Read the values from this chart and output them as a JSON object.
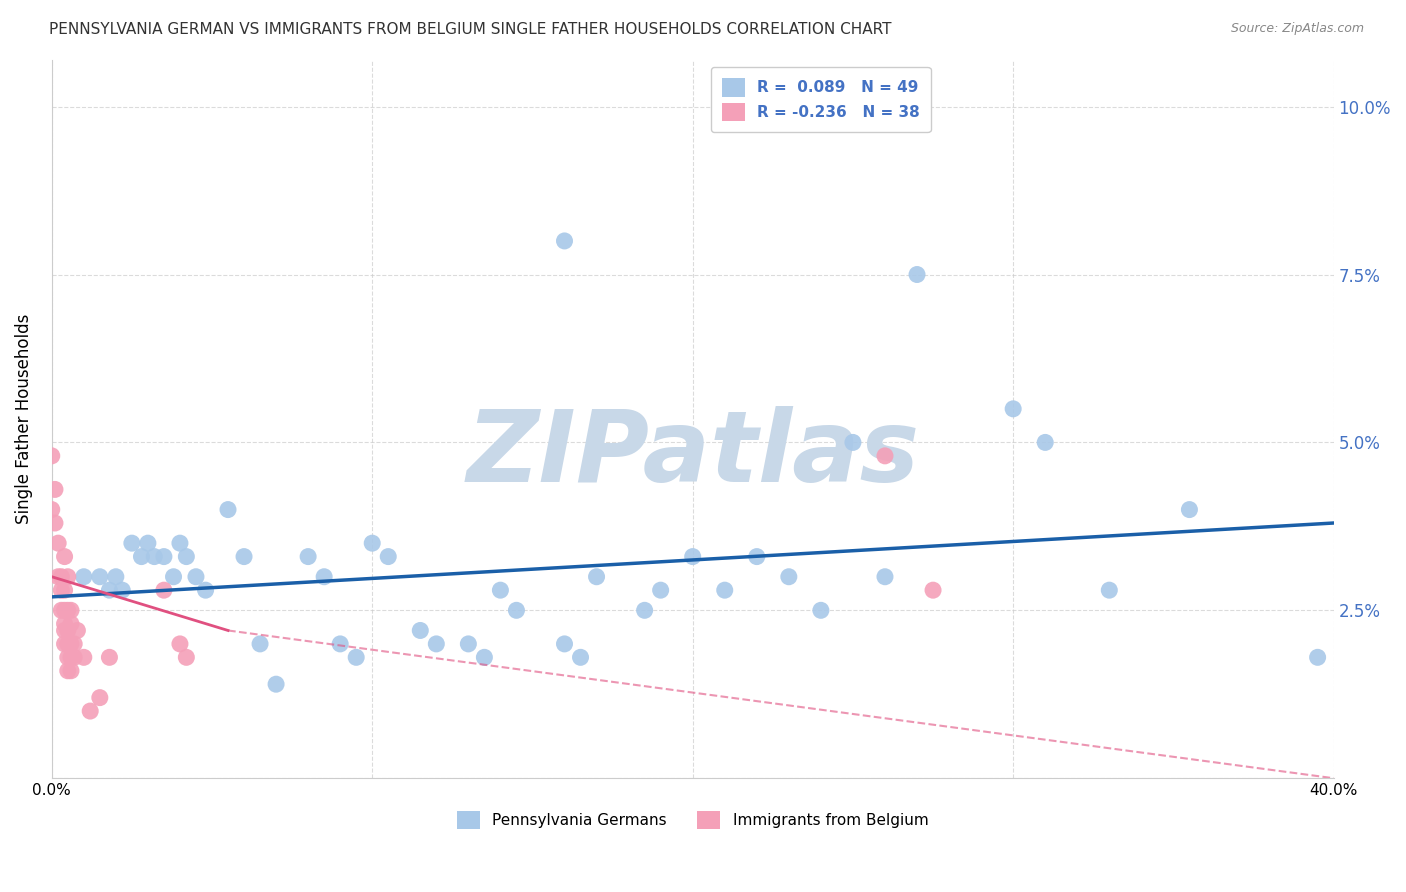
{
  "title": "PENNSYLVANIA GERMAN VS IMMIGRANTS FROM BELGIUM SINGLE FATHER HOUSEHOLDS CORRELATION CHART",
  "source": "Source: ZipAtlas.com",
  "ylabel": "Single Father Households",
  "xlim": [
    0.0,
    0.4
  ],
  "ylim": [
    0.0,
    0.107
  ],
  "yticks": [
    0.0,
    0.025,
    0.05,
    0.075,
    0.1
  ],
  "blue_color": "#a8c8e8",
  "pink_color": "#f4a0b8",
  "blue_line_color": "#1a5fa8",
  "pink_line_color": "#e05080",
  "right_axis_color": "#4472c4",
  "blue_scatter": [
    [
      0.01,
      0.03
    ],
    [
      0.015,
      0.03
    ],
    [
      0.018,
      0.028
    ],
    [
      0.02,
      0.03
    ],
    [
      0.022,
      0.028
    ],
    [
      0.025,
      0.035
    ],
    [
      0.028,
      0.033
    ],
    [
      0.03,
      0.035
    ],
    [
      0.032,
      0.033
    ],
    [
      0.035,
      0.033
    ],
    [
      0.038,
      0.03
    ],
    [
      0.04,
      0.035
    ],
    [
      0.042,
      0.033
    ],
    [
      0.045,
      0.03
    ],
    [
      0.048,
      0.028
    ],
    [
      0.055,
      0.04
    ],
    [
      0.06,
      0.033
    ],
    [
      0.065,
      0.02
    ],
    [
      0.07,
      0.014
    ],
    [
      0.08,
      0.033
    ],
    [
      0.085,
      0.03
    ],
    [
      0.09,
      0.02
    ],
    [
      0.095,
      0.018
    ],
    [
      0.1,
      0.035
    ],
    [
      0.105,
      0.033
    ],
    [
      0.115,
      0.022
    ],
    [
      0.12,
      0.02
    ],
    [
      0.13,
      0.02
    ],
    [
      0.135,
      0.018
    ],
    [
      0.14,
      0.028
    ],
    [
      0.145,
      0.025
    ],
    [
      0.16,
      0.02
    ],
    [
      0.165,
      0.018
    ],
    [
      0.17,
      0.03
    ],
    [
      0.185,
      0.025
    ],
    [
      0.19,
      0.028
    ],
    [
      0.2,
      0.033
    ],
    [
      0.21,
      0.028
    ],
    [
      0.22,
      0.033
    ],
    [
      0.23,
      0.03
    ],
    [
      0.24,
      0.025
    ],
    [
      0.25,
      0.05
    ],
    [
      0.26,
      0.03
    ],
    [
      0.16,
      0.08
    ],
    [
      0.27,
      0.075
    ],
    [
      0.3,
      0.055
    ],
    [
      0.31,
      0.05
    ],
    [
      0.33,
      0.028
    ],
    [
      0.355,
      0.04
    ],
    [
      0.395,
      0.018
    ]
  ],
  "pink_scatter": [
    [
      0.0,
      0.04
    ],
    [
      0.001,
      0.038
    ],
    [
      0.001,
      0.043
    ],
    [
      0.0,
      0.048
    ],
    [
      0.002,
      0.035
    ],
    [
      0.002,
      0.03
    ],
    [
      0.003,
      0.03
    ],
    [
      0.003,
      0.028
    ],
    [
      0.003,
      0.025
    ],
    [
      0.004,
      0.033
    ],
    [
      0.004,
      0.028
    ],
    [
      0.004,
      0.025
    ],
    [
      0.004,
      0.023
    ],
    [
      0.004,
      0.022
    ],
    [
      0.004,
      0.02
    ],
    [
      0.005,
      0.03
    ],
    [
      0.005,
      0.025
    ],
    [
      0.005,
      0.022
    ],
    [
      0.005,
      0.02
    ],
    [
      0.005,
      0.018
    ],
    [
      0.005,
      0.016
    ],
    [
      0.006,
      0.025
    ],
    [
      0.006,
      0.023
    ],
    [
      0.006,
      0.02
    ],
    [
      0.006,
      0.018
    ],
    [
      0.006,
      0.016
    ],
    [
      0.007,
      0.02
    ],
    [
      0.007,
      0.018
    ],
    [
      0.008,
      0.022
    ],
    [
      0.01,
      0.018
    ],
    [
      0.012,
      0.01
    ],
    [
      0.015,
      0.012
    ],
    [
      0.018,
      0.018
    ],
    [
      0.035,
      0.028
    ],
    [
      0.04,
      0.02
    ],
    [
      0.042,
      0.018
    ],
    [
      0.26,
      0.048
    ],
    [
      0.275,
      0.028
    ]
  ],
  "blue_regression": {
    "x_start": 0.0,
    "x_end": 0.4,
    "y_start": 0.027,
    "y_end": 0.038
  },
  "pink_regression_solid": {
    "x_start": 0.0,
    "x_end": 0.055,
    "y_start": 0.03,
    "y_end": 0.022
  },
  "pink_regression_dash": {
    "x_start": 0.055,
    "x_end": 0.4,
    "y_start": 0.022,
    "y_end": 0.0
  },
  "watermark": "ZIPatlas",
  "watermark_color": "#c8d8e8",
  "grid_color": "#cccccc",
  "background_color": "#ffffff"
}
